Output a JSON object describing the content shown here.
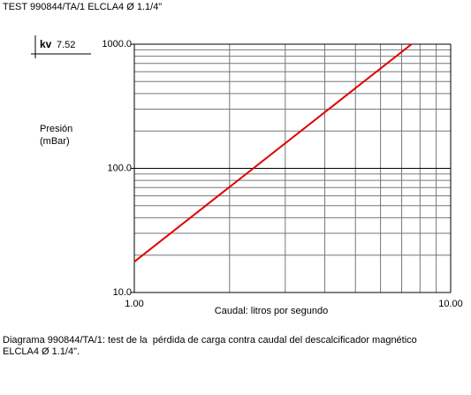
{
  "chart_data": {
    "type": "line",
    "title": "TEST 990844/TA/1 ELCLA4 Ø 1.1/4\"",
    "kv_label": "kv",
    "kv": 7.52,
    "ylabel": [
      "Presión",
      "(mBar)"
    ],
    "xlabel": "Caudal: litros por segundo",
    "caption": [
      "Diagrama 990844/TA/1: test de la  pérdida de carga contra caudal del descalcificador magnético",
      "ELCLA4 Ø 1.1/4\"."
    ],
    "xscale": "log",
    "yscale": "log",
    "grid": true,
    "xlim": [
      1,
      10
    ],
    "ylim": [
      10,
      1000
    ],
    "xticks": [
      {
        "value": 1,
        "label": "1.00"
      },
      {
        "value": 10,
        "label": "10.00"
      }
    ],
    "yticks": [
      {
        "value": 10,
        "label": "10.0"
      },
      {
        "value": 100,
        "label": "100.0"
      },
      {
        "value": 1000,
        "label": "1000.0"
      }
    ],
    "xminorticks": [
      2,
      3,
      4,
      5,
      6,
      7,
      8,
      9
    ],
    "yminorticks": [
      20,
      30,
      40,
      50,
      60,
      70,
      80,
      90,
      200,
      300,
      400,
      500,
      600,
      700,
      800,
      900
    ],
    "series": [
      {
        "color": "#e00000",
        "x": [
          1,
          7.52
        ],
        "values": [
          17.7,
          1000
        ]
      }
    ]
  }
}
